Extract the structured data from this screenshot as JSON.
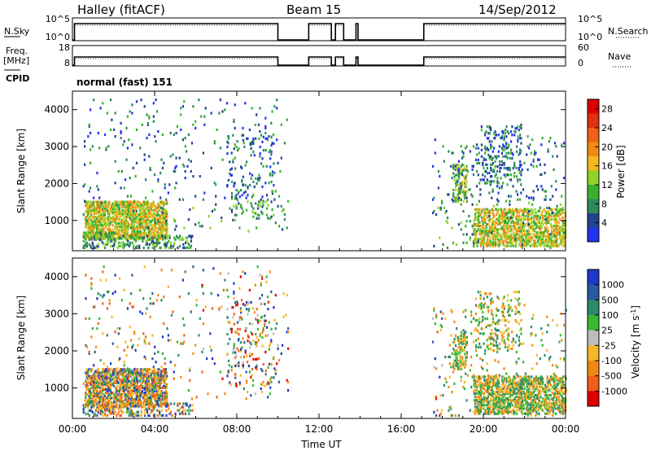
{
  "header": {
    "station": "Halley (fitACF)",
    "beam": "Beam 15",
    "date": "14/Sep/2012"
  },
  "status_panels": {
    "nsky": {
      "label": "N.Sky",
      "ticks": [
        "10^5",
        "10^0"
      ]
    },
    "nsearch": {
      "label": "N.Search",
      "ticks": [
        "10^5",
        "10^0"
      ]
    },
    "freq": {
      "label_top": "Freq.",
      "label_bottom": "[MHz]",
      "ticks": [
        "18",
        "8"
      ]
    },
    "nave": {
      "label": "Nave",
      "ticks": [
        "60",
        "0"
      ]
    },
    "cpid": {
      "label": "CPID",
      "value": "normal (fast) 151"
    },
    "gaps_hours": [
      [
        10.0,
        11.5
      ],
      [
        12.6,
        12.8
      ],
      [
        13.2,
        13.8
      ],
      [
        13.9,
        17.1
      ]
    ]
  },
  "chart_data": [
    {
      "type": "heatmap",
      "title": "",
      "xlabel": "Time UT",
      "ylabel": "Slant Range [km]",
      "x_ticks": [
        "00:00",
        "04:00",
        "08:00",
        "12:00",
        "16:00",
        "20:00",
        "00:00"
      ],
      "y_ticks": [
        "1000",
        "2000",
        "3000",
        "4000"
      ],
      "xlim_hours": [
        0,
        24
      ],
      "ylim_km": [
        180,
        4500
      ],
      "colorbar": {
        "label": "Power [dB]",
        "ticks": [
          "4",
          "8",
          "12",
          "16",
          "20",
          "24",
          "28"
        ],
        "colors": [
          "#2233ee",
          "#22448c",
          "#2d8a5a",
          "#3ab030",
          "#8fd428",
          "#f5b820",
          "#f08a10",
          "#f06018",
          "#e03010",
          "#dd0000"
        ]
      },
      "echo_regions": [
        {
          "t": [
            0.6,
            4.6
          ],
          "r": [
            500,
            1500
          ],
          "density": 0.55
        },
        {
          "t": [
            0.5,
            2.0
          ],
          "r": [
            250,
            700
          ],
          "density": 0.3
        },
        {
          "t": [
            2.0,
            5.8
          ],
          "r": [
            250,
            600
          ],
          "density": 0.25
        },
        {
          "t": [
            0.5,
            10.5
          ],
          "r": [
            700,
            4300
          ],
          "density": 0.02
        },
        {
          "t": [
            7.5,
            9.8
          ],
          "r": [
            1000,
            3300
          ],
          "density": 0.06
        },
        {
          "t": [
            18.5,
            19.2
          ],
          "r": [
            1500,
            2500
          ],
          "density": 0.35
        },
        {
          "t": [
            19.5,
            24.0
          ],
          "r": [
            300,
            1300
          ],
          "density": 0.45
        },
        {
          "t": [
            19.6,
            21.8
          ],
          "r": [
            2000,
            3600
          ],
          "density": 0.12
        },
        {
          "t": [
            17.5,
            24.0
          ],
          "r": [
            250,
            3300
          ],
          "density": 0.03
        }
      ]
    },
    {
      "type": "heatmap",
      "title": "",
      "xlabel": "Time UT",
      "ylabel": "Slant Range [km]",
      "x_ticks": [
        "00:00",
        "04:00",
        "08:00",
        "12:00",
        "16:00",
        "20:00",
        "00:00"
      ],
      "y_ticks": [
        "1000",
        "2000",
        "3000",
        "4000"
      ],
      "xlim_hours": [
        0,
        24
      ],
      "ylim_km": [
        180,
        4500
      ],
      "colorbar": {
        "label": "Velocity [m s^-1]",
        "ticks": [
          "1000",
          "500",
          "100",
          "25",
          "-25",
          "-100",
          "-500",
          "-1000"
        ],
        "colors": [
          "#1f38c8",
          "#2a5aa0",
          "#2e8a6a",
          "#3ab834",
          "#bdbdbd",
          "#f5b82a",
          "#f08a14",
          "#f06018",
          "#e00000"
        ]
      },
      "echo_regions": [
        {
          "t": [
            0.6,
            4.6
          ],
          "r": [
            500,
            1500
          ],
          "density": 0.55
        },
        {
          "t": [
            0.5,
            2.0
          ],
          "r": [
            250,
            700
          ],
          "density": 0.3
        },
        {
          "t": [
            2.0,
            5.8
          ],
          "r": [
            250,
            600
          ],
          "density": 0.25
        },
        {
          "t": [
            0.5,
            10.5
          ],
          "r": [
            700,
            4300
          ],
          "density": 0.02
        },
        {
          "t": [
            7.5,
            9.8
          ],
          "r": [
            1000,
            3300
          ],
          "density": 0.06
        },
        {
          "t": [
            18.5,
            19.2
          ],
          "r": [
            1500,
            2500
          ],
          "density": 0.35
        },
        {
          "t": [
            19.5,
            24.0
          ],
          "r": [
            300,
            1300
          ],
          "density": 0.45
        },
        {
          "t": [
            19.6,
            21.8
          ],
          "r": [
            2000,
            3600
          ],
          "density": 0.12
        },
        {
          "t": [
            17.5,
            24.0
          ],
          "r": [
            250,
            3300
          ],
          "density": 0.03
        }
      ]
    }
  ]
}
